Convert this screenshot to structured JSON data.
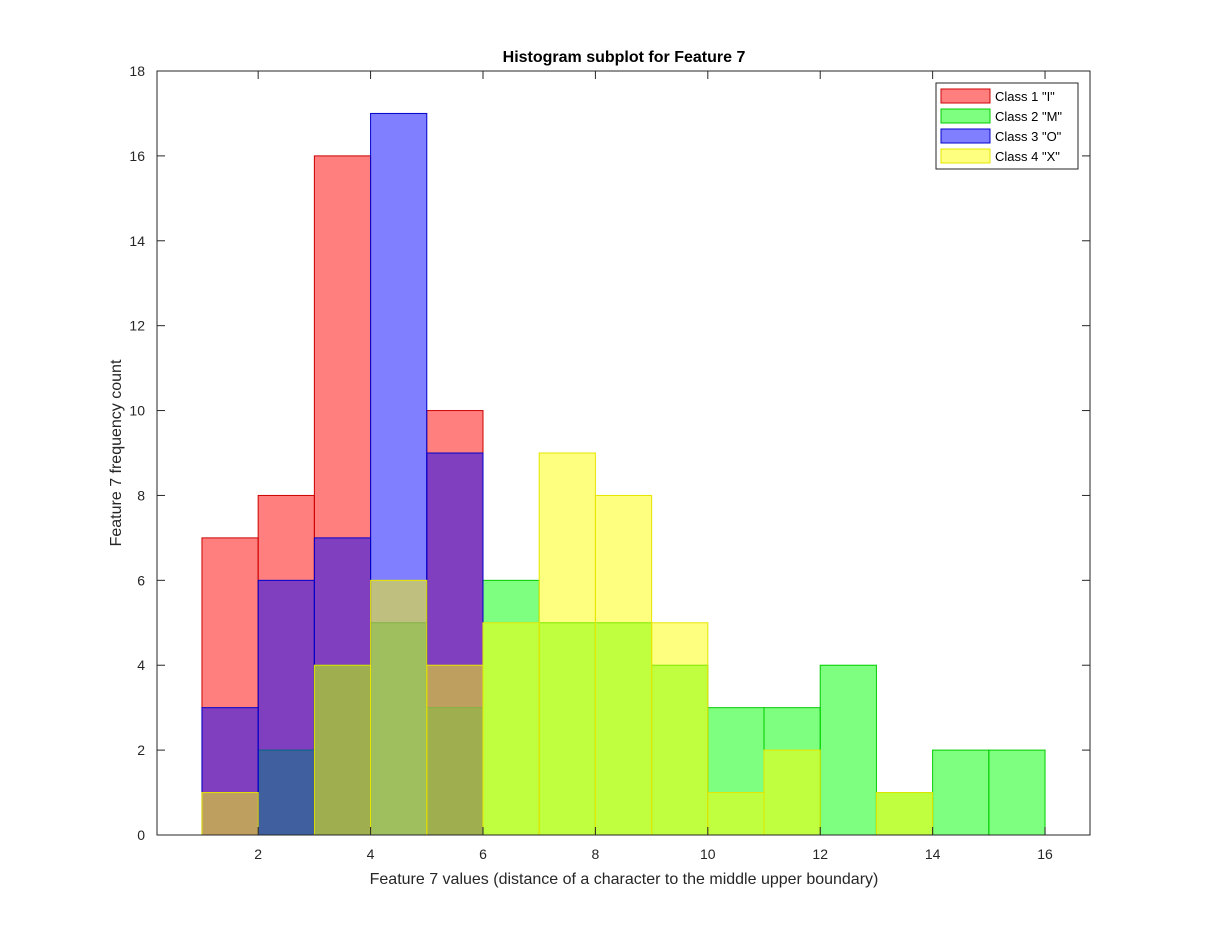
{
  "chart_data": {
    "type": "bar",
    "subtype": "overlapping-histogram",
    "title": "Histogram subplot for Feature 7",
    "xlabel": "Feature 7 values (distance of a character to the middle upper boundary)",
    "ylabel": "Feature 7 frequency count",
    "xlim": [
      0.2,
      16.8
    ],
    "ylim": [
      0,
      18
    ],
    "xticks": [
      2,
      4,
      6,
      8,
      10,
      12,
      14,
      16
    ],
    "yticks": [
      0,
      2,
      4,
      6,
      8,
      10,
      12,
      14,
      16,
      18
    ],
    "grid": false,
    "legend_location": "top-right",
    "bin_width": 1,
    "series": [
      {
        "name": "Class 1 \"I\"",
        "fill": "#ff0000",
        "edge": "#cc0000",
        "opacity": 0.5,
        "bins": [
          [
            1,
            7
          ],
          [
            2,
            8
          ],
          [
            3,
            16
          ],
          [
            5,
            10
          ]
        ]
      },
      {
        "name": "Class 2 \"M\"",
        "fill": "#00ff00",
        "edge": "#00cc00",
        "opacity": 0.5,
        "bins": [
          [
            2,
            2
          ],
          [
            3,
            4
          ],
          [
            4,
            5
          ],
          [
            5,
            3
          ],
          [
            6,
            6
          ],
          [
            7,
            5
          ],
          [
            8,
            5
          ],
          [
            9,
            4
          ],
          [
            10,
            3
          ],
          [
            11,
            3
          ],
          [
            12,
            4
          ],
          [
            13,
            1
          ],
          [
            14,
            2
          ],
          [
            15,
            2
          ]
        ]
      },
      {
        "name": "Class 3 \"O\"",
        "fill": "#0000ff",
        "edge": "#0000cc",
        "opacity": 0.5,
        "bins": [
          [
            1,
            3
          ],
          [
            2,
            6
          ],
          [
            3,
            7
          ],
          [
            4,
            17
          ],
          [
            5,
            9
          ]
        ]
      },
      {
        "name": "Class 4 \"X\"",
        "fill": "#ffff00",
        "edge": "#e6e600",
        "opacity": 0.5,
        "bins": [
          [
            1,
            1
          ],
          [
            3,
            4
          ],
          [
            4,
            6
          ],
          [
            5,
            4
          ],
          [
            6,
            5
          ],
          [
            7,
            9
          ],
          [
            8,
            8
          ],
          [
            9,
            5
          ],
          [
            10,
            1
          ],
          [
            11,
            2
          ],
          [
            13,
            1
          ]
        ]
      }
    ]
  }
}
